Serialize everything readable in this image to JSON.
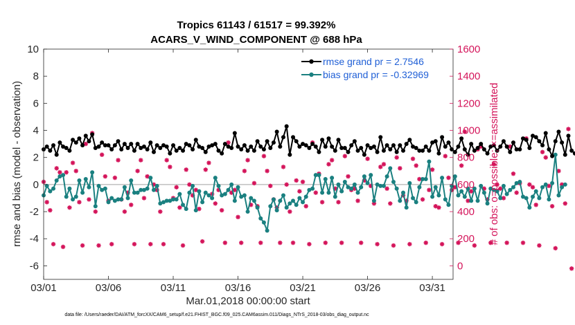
{
  "figure": {
    "title_line1": "Tropics 61143 / 61517 = 99.392%",
    "title_line2": "ACARS_V_WIND_COMPONENT @ 688 hPa",
    "footer": "data file: /Users/raeder/DAI/ATM_forcXX/CAM6_setup/f.e21.FHIST_BGC.f09_025.CAM6assim.011/Diags_NTrS_2018-03/obs_diag_output.nc"
  },
  "chart_data": {
    "type": "line",
    "xlabel": "Mar.01,2018 00:00:00 start",
    "ylabel_left": "rmse and bias (model - observation)",
    "ylabel_right": "# of obs: o=possible; ×=assimilated",
    "xlim": [
      0,
      31.6
    ],
    "ylim_left": [
      -7,
      10
    ],
    "ylim_right": [
      -100,
      1600
    ],
    "x_ticks": [
      {
        "pos": 0,
        "label": "03/01"
      },
      {
        "pos": 5,
        "label": "03/06"
      },
      {
        "pos": 10,
        "label": "03/11"
      },
      {
        "pos": 15,
        "label": "03/16"
      },
      {
        "pos": 20,
        "label": "03/21"
      },
      {
        "pos": 25,
        "label": "03/26"
      },
      {
        "pos": 30,
        "label": "03/31"
      }
    ],
    "y_ticks_left": [
      -6,
      -4,
      -2,
      0,
      2,
      4,
      6,
      8,
      10
    ],
    "y_ticks_right": [
      0,
      200,
      400,
      600,
      800,
      1000,
      1200,
      1400,
      1600
    ],
    "legend": [
      {
        "name": "rmse grand pr = 2.7546",
        "color": "#000000"
      },
      {
        "name": "bias grand pr = -0.32969",
        "color": "#1a8080"
      }
    ],
    "colors": {
      "rmse": "#000000",
      "bias": "#1a8080",
      "counts": "#d4145a",
      "zero_line": "#b3b3b3"
    },
    "time_step_days": 0.25,
    "series": [
      {
        "name": "rmse",
        "values": [
          2.6,
          2.8,
          2.5,
          2.9,
          2.2,
          3.1,
          2.8,
          2.7,
          2.5,
          3.3,
          3.1,
          3.4,
          2.9,
          3.6,
          3.2,
          3.7,
          2.7,
          2.8,
          3.1,
          2.9,
          2.9,
          2.6,
          2.9,
          3.2,
          2.6,
          3.0,
          2.7,
          3.0,
          2.5,
          3.0,
          2.7,
          2.8,
          2.6,
          3.1,
          2.4,
          2.9,
          2.7,
          2.9,
          2.8,
          2.3,
          2.9,
          2.5,
          2.7,
          2.5,
          3.0,
          2.9,
          2.6,
          3.3,
          2.8,
          2.7,
          2.4,
          2.8,
          2.9,
          3.0,
          2.5,
          2.3,
          3.0,
          2.8,
          2.7,
          3.8,
          2.8,
          2.6,
          2.9,
          2.5,
          2.8,
          2.5,
          3.2,
          2.8,
          2.6,
          3.2,
          2.7,
          3.1,
          3.9,
          2.8,
          3.5,
          4.3,
          2.2,
          3.5,
          3.2,
          2.8,
          3.0,
          2.9,
          2.7,
          3.0,
          2.8,
          2.4,
          3.3,
          2.8,
          3.4,
          2.8,
          2.5,
          3.3,
          2.7,
          2.7,
          2.4,
          2.9,
          3.2,
          2.5,
          2.7,
          2.2,
          2.9,
          2.7,
          2.8,
          2.4,
          3.5,
          2.5,
          2.9,
          2.6,
          2.9,
          2.4,
          2.9,
          2.5,
          3.0,
          3.3,
          2.8,
          2.7,
          2.5,
          2.5,
          2.8,
          2.5,
          3.1,
          3.2,
          2.3,
          3.5,
          2.8,
          3.1,
          2.6,
          2.4,
          2.8,
          3.4,
          2.6,
          2.2,
          3.0,
          2.5,
          2.7,
          3.0,
          2.6,
          2.3,
          2.8,
          2.9,
          2.5,
          2.8,
          3.2,
          2.8,
          2.4,
          3.1,
          2.6,
          2.6,
          3.4,
          3.3,
          2.7,
          3.6,
          3.5,
          3.2,
          2.9,
          3.8,
          2.6,
          2.1,
          3.2,
          3.9,
          3.1,
          2.2,
          3.6,
          2.5,
          2.3,
          2.1
        ]
      },
      {
        "name": "bias",
        "values": [
          -0.8,
          -0.1,
          -0.5,
          -0.3,
          0.3,
          0.6,
          0.7,
          -0.9,
          -0.3,
          -1.1,
          -0.9,
          0.3,
          -0.6,
          0.4,
          -0.2,
          0.9,
          -1.6,
          -0.1,
          -0.4,
          -0.3,
          -1.3,
          -1.0,
          -1.2,
          -1.1,
          -1.1,
          -0.2,
          -1.0,
          0.3,
          -0.6,
          -0.6,
          -0.4,
          -0.4,
          -0.3,
          0.5,
          -0.4,
          -0.1,
          -1.4,
          -1.3,
          -1.2,
          -1.2,
          -1.1,
          -1.1,
          -0.7,
          -1.5,
          -1.8,
          -0.6,
          -0.1,
          -1.9,
          -0.5,
          -1.3,
          -0.6,
          -0.8,
          -1.0,
          0.5,
          -0.1,
          -0.8,
          -0.7,
          -0.4,
          0.0,
          -1.2,
          -0.2,
          -0.9,
          -0.8,
          -2.0,
          -1.0,
          -1.2,
          -1.7,
          -2.5,
          -2.8,
          -3.4,
          -1.6,
          -1.1,
          -1.9,
          -1.2,
          -0.8,
          -1.7,
          -1.4,
          -1.2,
          -1.5,
          -1.0,
          -1.3,
          -0.9,
          -0.4,
          -0.3,
          0.7,
          0.7,
          -0.6,
          0.4,
          -0.6,
          0.5,
          -0.9,
          0.0,
          -0.5,
          0.2,
          -0.2,
          -0.3,
          0.0,
          -0.6,
          -0.2,
          0.6,
          0.1,
          0.7,
          -1.2,
          0.0,
          -0.1,
          -0.1,
          0.6,
          1.2,
          0.2,
          -0.3,
          -1.2,
          -0.6,
          -1.7,
          0.1,
          -1.0,
          -1.3,
          -0.2,
          0.4,
          0.4,
          1.7,
          -0.9,
          -0.2,
          -0.8,
          0.5,
          -1.1,
          -1.5,
          -0.1,
          0.6,
          -0.8,
          -0.5,
          -0.9,
          -0.3,
          -1.2,
          -0.3,
          -1.2,
          -0.1,
          -0.6,
          -1.4,
          -0.3,
          -0.4,
          -0.5,
          -1.0,
          -0.1,
          -0.7,
          -0.4,
          -0.2,
          0.1,
          0.2,
          -0.9,
          -1.0,
          -1.7,
          -0.9,
          -0.5,
          -1.0,
          -0.2,
          0.0,
          -1.1,
          0.1,
          2.2,
          -0.8,
          -0.2,
          0.0
        ]
      },
      {
        "name": "obs_possible_and_assimilated",
        "values": [
          620,
          470,
          410,
          160,
          720,
          690,
          140,
          690,
          430,
          760,
          700,
          470,
          150,
          900,
          490,
          980,
          400,
          150,
          820,
          660,
          480,
          160,
          650,
          780,
          490,
          400,
          540,
          450,
          160,
          700,
          780,
          500,
          660,
          160,
          600,
          560,
          400,
          160,
          780,
          730,
          500,
          580,
          430,
          150,
          710,
          600,
          520,
          560,
          420,
          180,
          710,
          760,
          530,
          460,
          560,
          410,
          170,
          910,
          540,
          560,
          360,
          170,
          700,
          780,
          450,
          610,
          440,
          170,
          810,
          700,
          590,
          490,
          430,
          170,
          730,
          600,
          400,
          170,
          630,
          550,
          620,
          440,
          160,
          910,
          540,
          680,
          470,
          170,
          750,
          780,
          570,
          470,
          170,
          810,
          660,
          560,
          570,
          480,
          170,
          630,
          790,
          590,
          460,
          160,
          730,
          750,
          570,
          460,
          150,
          800,
          720,
          520,
          480,
          160,
          790,
          740,
          640,
          490,
          170,
          560,
          710,
          440,
          430,
          160,
          810,
          650,
          560,
          580,
          170,
          740,
          990,
          480,
          550,
          150,
          860,
          880,
          570,
          490,
          170,
          750,
          600,
          570,
          500,
          170,
          880,
          680,
          540,
          610,
          170,
          940,
          600,
          580,
          450,
          150,
          840,
          800,
          590,
          440,
          130,
          700,
          600,
          460,
          1010,
          -20
        ]
      }
    ]
  }
}
